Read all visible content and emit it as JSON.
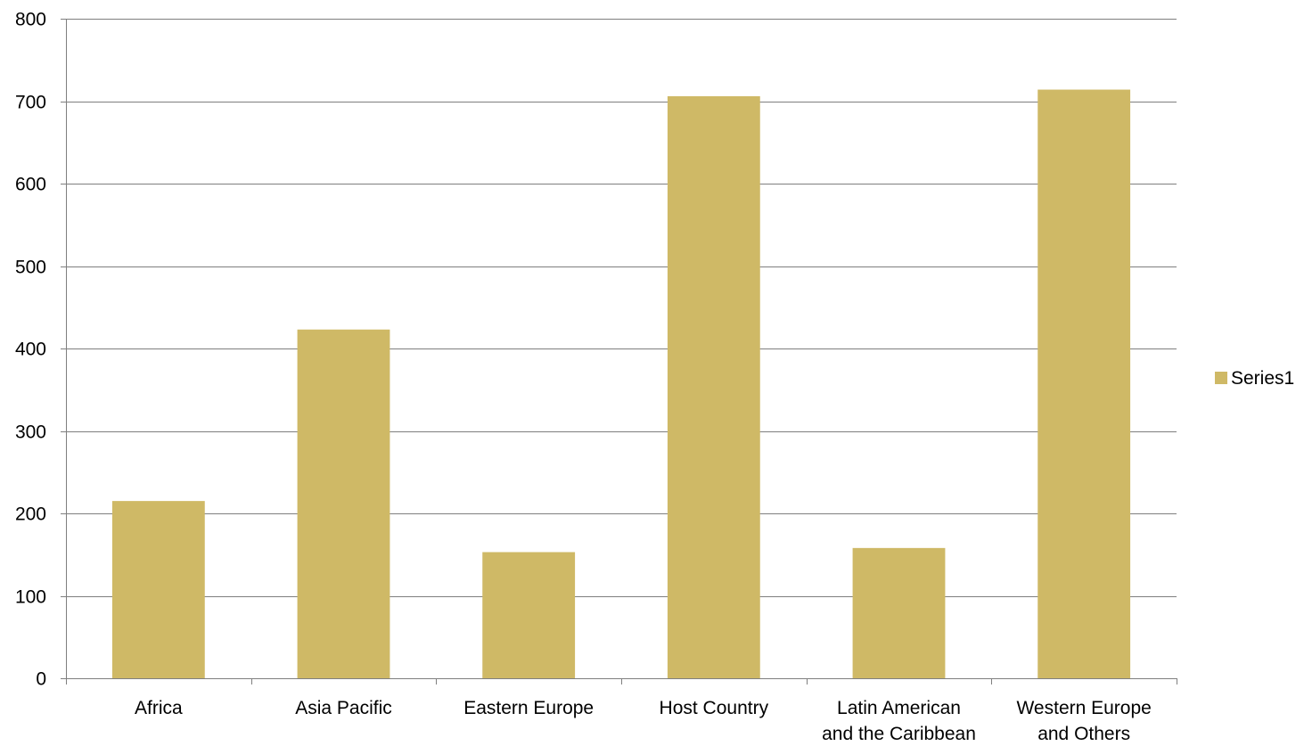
{
  "chart_data": {
    "type": "bar",
    "categories": [
      [
        "Africa"
      ],
      [
        "Asia Pacific"
      ],
      [
        "Eastern Europe"
      ],
      [
        "Host Country"
      ],
      [
        "Latin American",
        "and the Caribbean"
      ],
      [
        "Western Europe",
        "and Others"
      ]
    ],
    "series": [
      {
        "name": "Series1",
        "values": [
          215,
          423,
          153,
          706,
          158,
          714
        ],
        "color": "#CFB966"
      }
    ],
    "title": "",
    "xlabel": "",
    "ylabel": "",
    "ylim": [
      0,
      800
    ],
    "yticks": [
      0,
      100,
      200,
      300,
      400,
      500,
      600,
      700,
      800
    ],
    "grid": true,
    "gridline_color": "#7f7f7f",
    "axis_color": "#7f7f7f",
    "legend_position": "right"
  }
}
